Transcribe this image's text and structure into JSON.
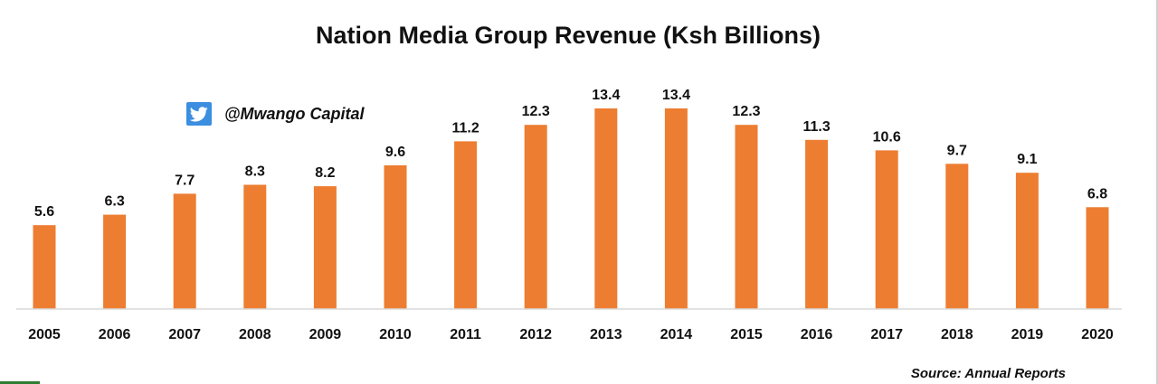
{
  "chart_data": {
    "type": "bar",
    "title": "Nation Media Group Revenue (Ksh Billions)",
    "xlabel": "",
    "ylabel": "",
    "categories": [
      "2005",
      "2006",
      "2007",
      "2008",
      "2009",
      "2010",
      "2011",
      "2012",
      "2013",
      "2014",
      "2015",
      "2016",
      "2017",
      "2018",
      "2019",
      "2020"
    ],
    "series": [
      {
        "values": [
          5.6,
          6.3,
          7.7,
          8.3,
          8.2,
          9.6,
          11.2,
          12.3,
          13.4,
          13.4,
          12.3,
          11.3,
          10.6,
          9.7,
          9.1,
          6.8
        ]
      }
    ],
    "value_labels": [
      "5.6",
      "6.3",
      "7.7",
      "8.3",
      "8.2",
      "9.6",
      "11.2",
      "12.3",
      "13.4",
      "13.4",
      "12.3",
      "11.3",
      "10.6",
      "9.7",
      "9.1",
      "6.8"
    ],
    "ylim": [
      0,
      13.4
    ],
    "grid": false,
    "legend": "none",
    "colors": {
      "bar": "#ed7d31",
      "baseline": "#d9d9d9"
    }
  },
  "watermark": {
    "handle": "@Mwango Capital",
    "icon": "twitter-bird-icon",
    "icon_color": "#3b8ee0"
  },
  "source": "Source: Annual Reports"
}
